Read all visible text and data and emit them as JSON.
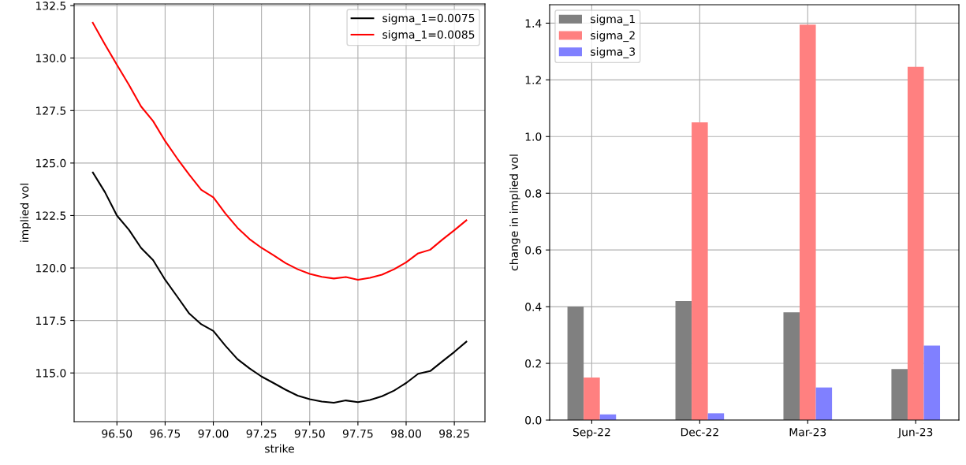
{
  "chart_data": [
    {
      "type": "line",
      "xlabel": "strike",
      "ylabel": "implied vol",
      "x": [
        96.375,
        96.4375,
        96.5,
        96.5625,
        96.625,
        96.6875,
        96.75,
        96.8125,
        96.875,
        96.9375,
        97.0,
        97.0625,
        97.125,
        97.1875,
        97.25,
        97.3125,
        97.375,
        97.4375,
        97.5,
        97.5625,
        97.625,
        97.6875,
        97.75,
        97.8125,
        97.875,
        97.9375,
        98.0,
        98.0625,
        98.125,
        98.1875,
        98.25,
        98.3125
      ],
      "series": [
        {
          "name": "sigma_1=0.0075",
          "color": "#000000",
          "values": [
            124.55,
            123.62,
            122.5,
            121.82,
            120.96,
            120.38,
            119.44,
            118.64,
            117.83,
            117.32,
            117.0,
            116.3,
            115.66,
            115.22,
            114.83,
            114.52,
            114.2,
            113.92,
            113.75,
            113.64,
            113.58,
            113.69,
            113.61,
            113.71,
            113.89,
            114.16,
            114.52,
            114.96,
            115.09,
            115.55,
            116.0,
            116.49
          ]
        },
        {
          "name": "sigma_1=0.0085",
          "color": "#ff0000",
          "values": [
            131.68,
            130.66,
            129.68,
            128.72,
            127.7,
            127.0,
            126.05,
            125.22,
            124.45,
            123.72,
            123.37,
            122.6,
            121.92,
            121.38,
            120.96,
            120.61,
            120.23,
            119.94,
            119.72,
            119.58,
            119.5,
            119.57,
            119.44,
            119.53,
            119.68,
            119.94,
            120.27,
            120.7,
            120.87,
            121.35,
            121.8,
            122.27
          ]
        }
      ],
      "xlim": [
        96.278,
        98.409
      ],
      "xticks": [
        {
          "value": 96.5,
          "label": "96.50"
        },
        {
          "value": 96.75,
          "label": "96.75"
        },
        {
          "value": 97.0,
          "label": "97.00"
        },
        {
          "value": 97.25,
          "label": "97.25"
        },
        {
          "value": 97.5,
          "label": "97.50"
        },
        {
          "value": 97.75,
          "label": "97.75"
        },
        {
          "value": 98.0,
          "label": "98.00"
        },
        {
          "value": 98.25,
          "label": "98.25"
        }
      ],
      "ylim": [
        112.68,
        132.58
      ],
      "yticks": [
        {
          "value": 115,
          "label": "115.0"
        },
        {
          "value": 117.5,
          "label": "117.5"
        },
        {
          "value": 120,
          "label": "120.0"
        },
        {
          "value": 122.5,
          "label": "122.5"
        },
        {
          "value": 125,
          "label": "125.0"
        },
        {
          "value": 127.5,
          "label": "127.5"
        },
        {
          "value": 130,
          "label": "130.0"
        },
        {
          "value": 132.5,
          "label": "132.5"
        }
      ],
      "grid": true,
      "legend": "top right",
      "marker": "none",
      "line_style": "solid"
    },
    {
      "type": "bar",
      "ylabel": "change in implied vol",
      "categories": [
        "Sep-22",
        "Dec-22",
        "Mar-23",
        "Jun-23"
      ],
      "series": [
        {
          "name": "sigma_1",
          "color": "#808080",
          "values": [
            0.4,
            0.42,
            0.38,
            0.18
          ]
        },
        {
          "name": "sigma_2",
          "color": "#ff8080",
          "values": [
            0.15,
            1.05,
            1.395,
            1.246
          ]
        },
        {
          "name": "sigma_3",
          "color": "#8080ff",
          "values": [
            0.02,
            0.024,
            0.115,
            0.263
          ]
        }
      ],
      "ylim": [
        0,
        1.465
      ],
      "yticks": [
        {
          "value": 0,
          "label": "0.0"
        },
        {
          "value": 0.2,
          "label": "0.2"
        },
        {
          "value": 0.4,
          "label": "0.4"
        },
        {
          "value": 0.6,
          "label": "0.6"
        },
        {
          "value": 0.8,
          "label": "0.8"
        },
        {
          "value": 1.0,
          "label": "1.0"
        },
        {
          "value": 1.2,
          "label": "1.2"
        },
        {
          "value": 1.4,
          "label": "1.4"
        }
      ],
      "grid": true,
      "legend": "top left"
    }
  ]
}
